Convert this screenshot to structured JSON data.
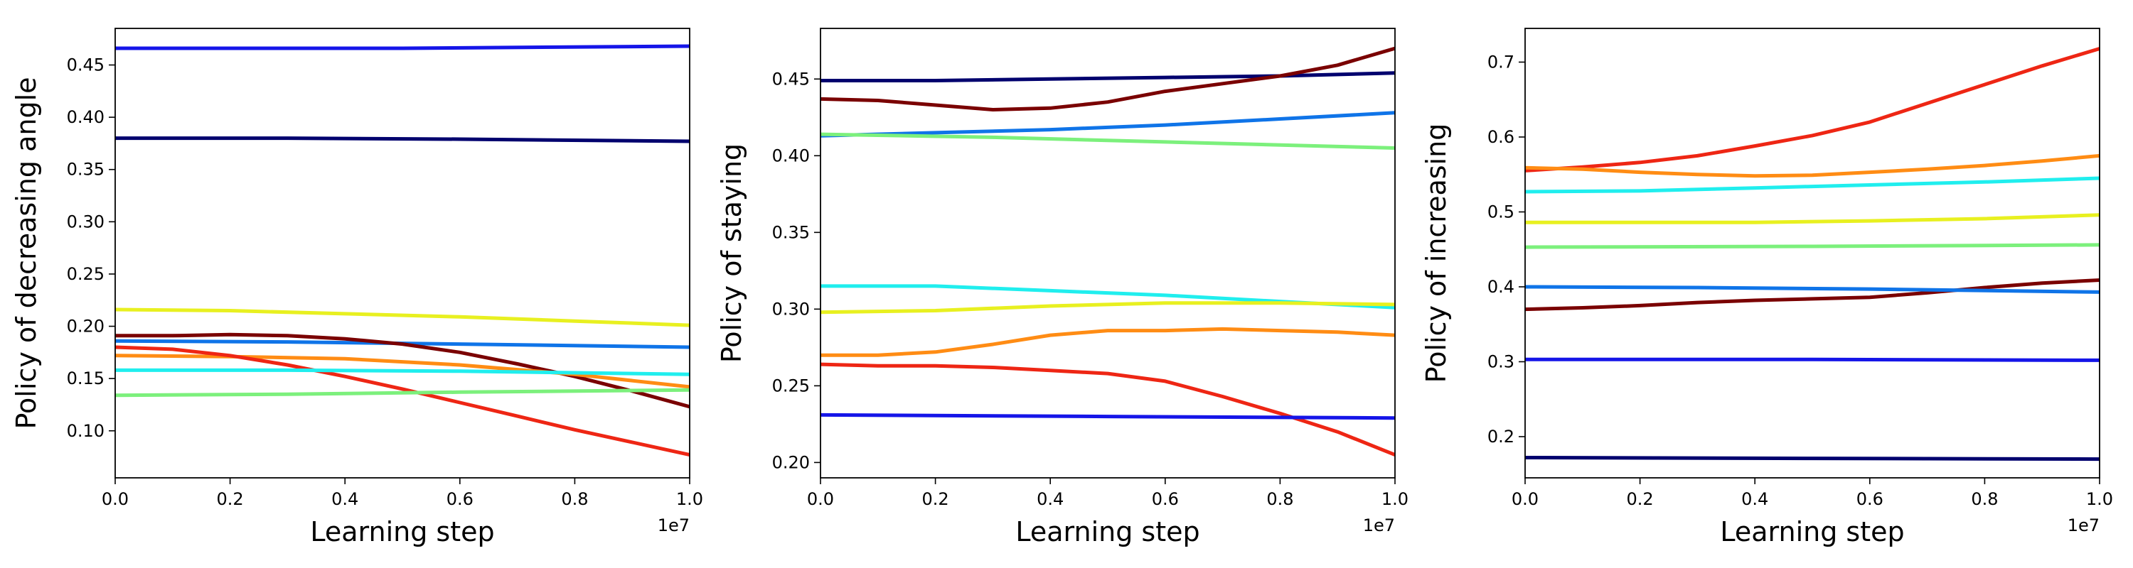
{
  "chart_data": [
    {
      "type": "line",
      "xlabel": "Learning step",
      "ylabel": "Policy of decreasing angle",
      "x_offset_label": "1e7",
      "xlim": [
        0,
        1.0
      ],
      "ylim": [
        0.055,
        0.485
      ],
      "xticks": [
        0.0,
        0.2,
        0.4,
        0.6,
        0.8,
        1.0
      ],
      "xtick_labels": [
        "0.0",
        "0.2",
        "0.4",
        "0.6",
        "0.8",
        "1.0"
      ],
      "yticks": [
        0.1,
        0.15,
        0.2,
        0.25,
        0.3,
        0.35,
        0.4,
        0.45
      ],
      "ytick_labels": [
        "0.10",
        "0.15",
        "0.20",
        "0.25",
        "0.30",
        "0.35",
        "0.40",
        "0.45"
      ],
      "grid": false,
      "series": [
        {
          "color": "#1515e8",
          "x": [
            0,
            0.5,
            1.0
          ],
          "values": [
            0.466,
            0.466,
            0.468
          ]
        },
        {
          "color": "#00006e",
          "x": [
            0,
            0.3,
            0.6,
            1.0
          ],
          "values": [
            0.38,
            0.38,
            0.379,
            0.377
          ]
        },
        {
          "color": "#e8f020",
          "x": [
            0,
            0.2,
            0.4,
            0.6,
            0.8,
            1.0
          ],
          "values": [
            0.216,
            0.215,
            0.212,
            0.209,
            0.205,
            0.201
          ]
        },
        {
          "color": "#0f74e8",
          "x": [
            0,
            0.3,
            0.6,
            1.0
          ],
          "values": [
            0.186,
            0.185,
            0.183,
            0.18
          ]
        },
        {
          "color": "#7a0000",
          "x": [
            0,
            0.1,
            0.2,
            0.3,
            0.4,
            0.5,
            0.6,
            0.7,
            0.8,
            0.9,
            1.0
          ],
          "values": [
            0.191,
            0.191,
            0.192,
            0.191,
            0.188,
            0.183,
            0.175,
            0.164,
            0.152,
            0.138,
            0.123
          ]
        },
        {
          "color": "#ff8c14",
          "x": [
            0,
            0.2,
            0.4,
            0.6,
            0.8,
            1.0
          ],
          "values": [
            0.172,
            0.171,
            0.169,
            0.163,
            0.154,
            0.142
          ]
        },
        {
          "color": "#ee2614",
          "x": [
            0,
            0.1,
            0.2,
            0.3,
            0.4,
            0.5,
            0.6,
            0.7,
            0.8,
            0.9,
            1.0
          ],
          "values": [
            0.18,
            0.178,
            0.172,
            0.163,
            0.152,
            0.14,
            0.127,
            0.114,
            0.101,
            0.089,
            0.077
          ]
        },
        {
          "color": "#20eeee",
          "x": [
            0,
            0.3,
            0.6,
            1.0
          ],
          "values": [
            0.158,
            0.158,
            0.157,
            0.154
          ]
        },
        {
          "color": "#7cf07c",
          "x": [
            0,
            0.3,
            0.6,
            1.0
          ],
          "values": [
            0.134,
            0.135,
            0.137,
            0.139
          ]
        }
      ]
    },
    {
      "type": "line",
      "xlabel": "Learning step",
      "ylabel": "Policy of staying",
      "x_offset_label": "1e7",
      "xlim": [
        0,
        1.0
      ],
      "ylim": [
        0.19,
        0.483
      ],
      "xticks": [
        0.0,
        0.2,
        0.4,
        0.6,
        0.8,
        1.0
      ],
      "xtick_labels": [
        "0.0",
        "0.2",
        "0.4",
        "0.6",
        "0.8",
        "1.0"
      ],
      "yticks": [
        0.2,
        0.25,
        0.3,
        0.35,
        0.4,
        0.45
      ],
      "ytick_labels": [
        "0.20",
        "0.25",
        "0.30",
        "0.35",
        "0.40",
        "0.45"
      ],
      "grid": false,
      "series": [
        {
          "color": "#00006e",
          "x": [
            0,
            0.2,
            0.4,
            0.6,
            0.8,
            1.0
          ],
          "values": [
            0.449,
            0.449,
            0.45,
            0.451,
            0.452,
            0.454
          ]
        },
        {
          "color": "#7a0000",
          "x": [
            0,
            0.1,
            0.2,
            0.3,
            0.4,
            0.5,
            0.6,
            0.7,
            0.8,
            0.9,
            1.0
          ],
          "values": [
            0.437,
            0.436,
            0.433,
            0.43,
            0.431,
            0.435,
            0.442,
            0.447,
            0.452,
            0.459,
            0.47
          ]
        },
        {
          "color": "#0f74e8",
          "x": [
            0,
            0.2,
            0.4,
            0.6,
            0.8,
            1.0
          ],
          "values": [
            0.413,
            0.415,
            0.417,
            0.42,
            0.424,
            0.428
          ]
        },
        {
          "color": "#7cf07c",
          "x": [
            0,
            0.3,
            0.6,
            1.0
          ],
          "values": [
            0.414,
            0.412,
            0.409,
            0.405
          ]
        },
        {
          "color": "#20eeee",
          "x": [
            0,
            0.2,
            0.4,
            0.6,
            0.8,
            1.0
          ],
          "values": [
            0.315,
            0.315,
            0.312,
            0.309,
            0.305,
            0.301
          ]
        },
        {
          "color": "#e8f020",
          "x": [
            0,
            0.2,
            0.4,
            0.6,
            0.8,
            1.0
          ],
          "values": [
            0.298,
            0.299,
            0.302,
            0.304,
            0.304,
            0.303
          ]
        },
        {
          "color": "#ff8c14",
          "x": [
            0,
            0.1,
            0.2,
            0.3,
            0.4,
            0.5,
            0.6,
            0.7,
            0.8,
            0.9,
            1.0
          ],
          "values": [
            0.27,
            0.27,
            0.272,
            0.277,
            0.283,
            0.286,
            0.286,
            0.287,
            0.286,
            0.285,
            0.283
          ]
        },
        {
          "color": "#ee2614",
          "x": [
            0,
            0.1,
            0.2,
            0.3,
            0.4,
            0.5,
            0.6,
            0.7,
            0.8,
            0.9,
            1.0
          ],
          "values": [
            0.264,
            0.263,
            0.263,
            0.262,
            0.26,
            0.258,
            0.253,
            0.243,
            0.232,
            0.22,
            0.205
          ]
        },
        {
          "color": "#1515e8",
          "x": [
            0,
            0.5,
            1.0
          ],
          "values": [
            0.231,
            0.23,
            0.229
          ]
        }
      ]
    },
    {
      "type": "line",
      "xlabel": "Learning step",
      "ylabel": "Policy of increasing",
      "x_offset_label": "1e7",
      "xlim": [
        0,
        1.0
      ],
      "ylim": [
        0.145,
        0.745
      ],
      "xticks": [
        0.0,
        0.2,
        0.4,
        0.6,
        0.8,
        1.0
      ],
      "xtick_labels": [
        "0.0",
        "0.2",
        "0.4",
        "0.6",
        "0.8",
        "1.0"
      ],
      "yticks": [
        0.2,
        0.3,
        0.4,
        0.5,
        0.6,
        0.7
      ],
      "ytick_labels": [
        "0.2",
        "0.3",
        "0.4",
        "0.5",
        "0.6",
        "0.7"
      ],
      "grid": false,
      "series": [
        {
          "color": "#ee2614",
          "x": [
            0,
            0.1,
            0.2,
            0.3,
            0.4,
            0.5,
            0.6,
            0.7,
            0.8,
            0.9,
            1.0
          ],
          "values": [
            0.555,
            0.56,
            0.566,
            0.575,
            0.588,
            0.602,
            0.62,
            0.645,
            0.67,
            0.695,
            0.718
          ]
        },
        {
          "color": "#ff8c14",
          "x": [
            0,
            0.1,
            0.2,
            0.3,
            0.4,
            0.5,
            0.6,
            0.7,
            0.8,
            0.9,
            1.0
          ],
          "values": [
            0.559,
            0.557,
            0.553,
            0.55,
            0.548,
            0.549,
            0.553,
            0.557,
            0.562,
            0.568,
            0.575
          ]
        },
        {
          "color": "#20eeee",
          "x": [
            0,
            0.2,
            0.4,
            0.6,
            0.8,
            1.0
          ],
          "values": [
            0.527,
            0.528,
            0.532,
            0.536,
            0.54,
            0.545
          ]
        },
        {
          "color": "#e8f020",
          "x": [
            0,
            0.2,
            0.4,
            0.6,
            0.8,
            1.0
          ],
          "values": [
            0.486,
            0.486,
            0.486,
            0.488,
            0.491,
            0.496
          ]
        },
        {
          "color": "#7cf07c",
          "x": [
            0,
            0.5,
            1.0
          ],
          "values": [
            0.453,
            0.454,
            0.456
          ]
        },
        {
          "color": "#7a0000",
          "x": [
            0,
            0.1,
            0.2,
            0.3,
            0.4,
            0.5,
            0.6,
            0.7,
            0.8,
            0.9,
            1.0
          ],
          "values": [
            0.37,
            0.372,
            0.375,
            0.379,
            0.382,
            0.384,
            0.386,
            0.392,
            0.399,
            0.405,
            0.409
          ]
        },
        {
          "color": "#0f74e8",
          "x": [
            0,
            0.3,
            0.6,
            1.0
          ],
          "values": [
            0.4,
            0.399,
            0.397,
            0.393
          ]
        },
        {
          "color": "#1515e8",
          "x": [
            0,
            0.5,
            1.0
          ],
          "values": [
            0.303,
            0.303,
            0.302
          ]
        },
        {
          "color": "#00006e",
          "x": [
            0,
            0.5,
            1.0
          ],
          "values": [
            0.172,
            0.171,
            0.17
          ]
        }
      ]
    }
  ]
}
